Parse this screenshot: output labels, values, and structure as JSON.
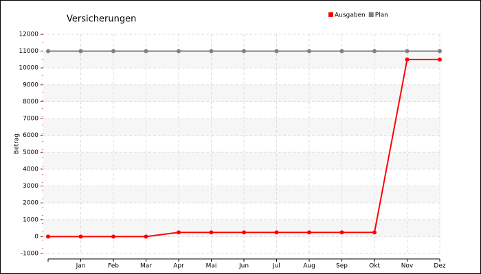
{
  "chart_data": {
    "type": "line",
    "title": "Versicherungen",
    "y_label": "Betrag",
    "categories": [
      null,
      "Jan",
      "Feb",
      "Mar",
      "Apr",
      "Mai",
      "Jun",
      "Jul",
      "Aug",
      "Sep",
      "Okt",
      "Nov",
      "Dez"
    ],
    "series": [
      {
        "name": "Ausgaben",
        "color": "#ff0000",
        "values": [
          0,
          0,
          0,
          0,
          250,
          250,
          250,
          250,
          250,
          250,
          250,
          10500,
          10500
        ]
      },
      {
        "name": "Plan",
        "color": "#808080",
        "values": [
          11000,
          11000,
          11000,
          11000,
          11000,
          11000,
          11000,
          11000,
          11000,
          11000,
          11000,
          11000,
          11000
        ]
      }
    ],
    "ylim": [
      -1000,
      12000
    ],
    "yticks": [
      -1000,
      0,
      1000,
      2000,
      3000,
      4000,
      5000,
      6000,
      7000,
      8000,
      9000,
      10000,
      11000,
      12000
    ],
    "grid": true,
    "legend": "top-right"
  }
}
